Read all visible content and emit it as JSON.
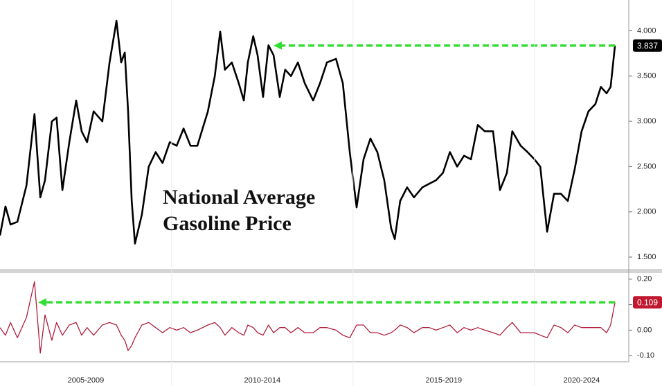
{
  "chart_data": [
    {
      "type": "line",
      "title": "National Average Gasoline Price",
      "x": [
        2005.27,
        2005.42,
        2005.56,
        2005.75,
        2006.0,
        2006.22,
        2006.38,
        2006.51,
        2006.7,
        2006.83,
        2006.99,
        2007.18,
        2007.37,
        2007.52,
        2007.67,
        2007.85,
        2008.09,
        2008.29,
        2008.48,
        2008.61,
        2008.71,
        2008.8,
        2008.9,
        2008.99,
        2009.18,
        2009.37,
        2009.56,
        2009.75,
        2009.95,
        2010.14,
        2010.33,
        2010.52,
        2010.71,
        2011.0,
        2011.19,
        2011.34,
        2011.47,
        2011.66,
        2011.85,
        2011.99,
        2012.1,
        2012.25,
        2012.37,
        2012.52,
        2012.67,
        2012.81,
        2012.98,
        2013.13,
        2013.29,
        2013.48,
        2013.67,
        2013.9,
        2014.09,
        2014.28,
        2014.53,
        2014.72,
        2014.91,
        2015.1,
        2015.29,
        2015.48,
        2015.67,
        2015.86,
        2016.05,
        2016.15,
        2016.3,
        2016.49,
        2016.68,
        2016.91,
        2017.1,
        2017.29,
        2017.48,
        2017.67,
        2017.87,
        2018.06,
        2018.25,
        2018.44,
        2018.63,
        2018.86,
        2019.05,
        2019.24,
        2019.39,
        2019.62,
        2019.81,
        2020.0,
        2020.16,
        2020.35,
        2020.54,
        2020.73,
        2020.92,
        2021.11,
        2021.3,
        2021.49,
        2021.68,
        2021.83,
        2021.99,
        2022.1,
        2022.22
      ],
      "values": [
        1.74,
        2.06,
        1.86,
        1.89,
        2.29,
        3.08,
        2.16,
        2.35,
        3.0,
        3.04,
        2.24,
        2.77,
        3.23,
        2.89,
        2.77,
        3.11,
        3.0,
        3.65,
        4.11,
        3.65,
        3.76,
        3.11,
        2.12,
        1.65,
        1.97,
        2.5,
        2.66,
        2.54,
        2.77,
        2.73,
        2.92,
        2.73,
        2.73,
        3.11,
        3.5,
        3.99,
        3.57,
        3.65,
        3.42,
        3.23,
        3.65,
        3.94,
        3.73,
        3.27,
        3.84,
        3.73,
        3.27,
        3.57,
        3.5,
        3.65,
        3.42,
        3.23,
        3.42,
        3.65,
        3.69,
        3.42,
        2.66,
        2.05,
        2.58,
        2.81,
        2.66,
        2.35,
        1.82,
        1.7,
        2.12,
        2.27,
        2.16,
        2.27,
        2.31,
        2.35,
        2.43,
        2.66,
        2.5,
        2.62,
        2.58,
        2.96,
        2.89,
        2.89,
        2.24,
        2.43,
        2.89,
        2.73,
        2.66,
        2.58,
        2.5,
        1.78,
        2.2,
        2.2,
        2.12,
        2.47,
        2.89,
        3.11,
        3.19,
        3.38,
        3.31,
        3.38,
        3.837
      ],
      "color": "#000000",
      "last_value": 3.837,
      "last_value_box_color": "#000000",
      "reference_arrow": {
        "x": [
          2012.81,
          2022.22
        ],
        "y": 3.837,
        "color": "#33dd33"
      },
      "xlim": [
        2005.27,
        2022.6
      ],
      "ylim": [
        1.37,
        4.34
      ],
      "yticks": [
        {
          "value": 1.5,
          "label": "1.500"
        },
        {
          "value": 2,
          "label": "2.000"
        },
        {
          "value": 2.5,
          "label": "2.500"
        },
        {
          "value": 3,
          "label": "3.000"
        },
        {
          "value": 3.5,
          "label": "3.500"
        },
        {
          "value": 4,
          "label": "4.000"
        }
      ]
    },
    {
      "type": "line",
      "x": [
        2005.27,
        2005.42,
        2005.56,
        2005.75,
        2006.0,
        2006.22,
        2006.38,
        2006.51,
        2006.7,
        2006.83,
        2006.99,
        2007.18,
        2007.37,
        2007.52,
        2007.67,
        2007.85,
        2008.09,
        2008.29,
        2008.48,
        2008.61,
        2008.71,
        2008.8,
        2008.9,
        2008.99,
        2009.18,
        2009.37,
        2009.56,
        2009.75,
        2009.95,
        2010.14,
        2010.33,
        2010.52,
        2010.71,
        2011.0,
        2011.19,
        2011.34,
        2011.47,
        2011.66,
        2011.85,
        2011.99,
        2012.1,
        2012.25,
        2012.37,
        2012.52,
        2012.67,
        2012.81,
        2012.98,
        2013.13,
        2013.29,
        2013.48,
        2013.67,
        2013.9,
        2014.09,
        2014.28,
        2014.53,
        2014.72,
        2014.91,
        2015.1,
        2015.29,
        2015.48,
        2015.67,
        2015.86,
        2016.05,
        2016.15,
        2016.3,
        2016.49,
        2016.68,
        2016.91,
        2017.1,
        2017.29,
        2017.48,
        2017.67,
        2017.87,
        2018.06,
        2018.25,
        2018.44,
        2018.63,
        2018.86,
        2019.05,
        2019.24,
        2019.39,
        2019.62,
        2019.81,
        2020.0,
        2020.16,
        2020.35,
        2020.54,
        2020.73,
        2020.92,
        2021.11,
        2021.3,
        2021.49,
        2021.68,
        2021.83,
        2021.99,
        2022.1,
        2022.22
      ],
      "values": [
        0.01,
        -0.02,
        0.03,
        -0.03,
        0.05,
        0.19,
        -0.09,
        0.06,
        -0.04,
        0.03,
        -0.02,
        0.02,
        0.03,
        -0.02,
        0.01,
        -0.02,
        0.02,
        0.03,
        0.02,
        -0.02,
        -0.04,
        -0.08,
        -0.06,
        -0.03,
        0.02,
        0.03,
        0.01,
        -0.01,
        0.01,
        0.0,
        0.01,
        -0.01,
        0.0,
        0.02,
        0.03,
        0.01,
        -0.02,
        0.01,
        -0.01,
        -0.02,
        0.02,
        0.01,
        -0.01,
        -0.02,
        0.02,
        -0.01,
        0.01,
        0.01,
        -0.01,
        0.01,
        -0.01,
        -0.01,
        0.01,
        0.01,
        0.0,
        -0.02,
        -0.03,
        0.02,
        0.02,
        -0.01,
        -0.01,
        -0.02,
        -0.01,
        0.0,
        0.02,
        0.01,
        -0.01,
        0.01,
        0.01,
        0.0,
        0.01,
        0.02,
        -0.01,
        0.01,
        0.0,
        0.01,
        0.0,
        -0.01,
        -0.02,
        0.01,
        0.03,
        -0.01,
        -0.01,
        -0.01,
        -0.02,
        -0.03,
        0.02,
        0.01,
        -0.01,
        0.02,
        0.01,
        0.01,
        0.01,
        0.01,
        -0.01,
        0.02,
        0.109
      ],
      "color": "#b01e3c",
      "last_value": 0.109,
      "last_value_box_color": "#c0182e",
      "reference_arrow": {
        "x": [
          2006.32,
          2022.22
        ],
        "y": 0.109,
        "color": "#33dd33"
      },
      "xlim": [
        2005.27,
        2022.6
      ],
      "ylim": [
        -0.124,
        0.224
      ],
      "yticks": [
        {
          "value": -0.1,
          "label": "-0.10"
        },
        {
          "value": 0,
          "label": "0.00"
        },
        {
          "value": 0.1,
          "label": "0.10"
        },
        {
          "value": 0.2,
          "label": "0.20"
        }
      ],
      "x_bands": [
        {
          "label": "2005-2009",
          "start": 2005,
          "end": 2010
        },
        {
          "label": "2010-2014",
          "start": 2010,
          "end": 2015
        },
        {
          "label": "2015-2019",
          "start": 2015,
          "end": 2020
        },
        {
          "label": "2020-2024",
          "start": 2020,
          "end": 2025
        }
      ]
    }
  ]
}
